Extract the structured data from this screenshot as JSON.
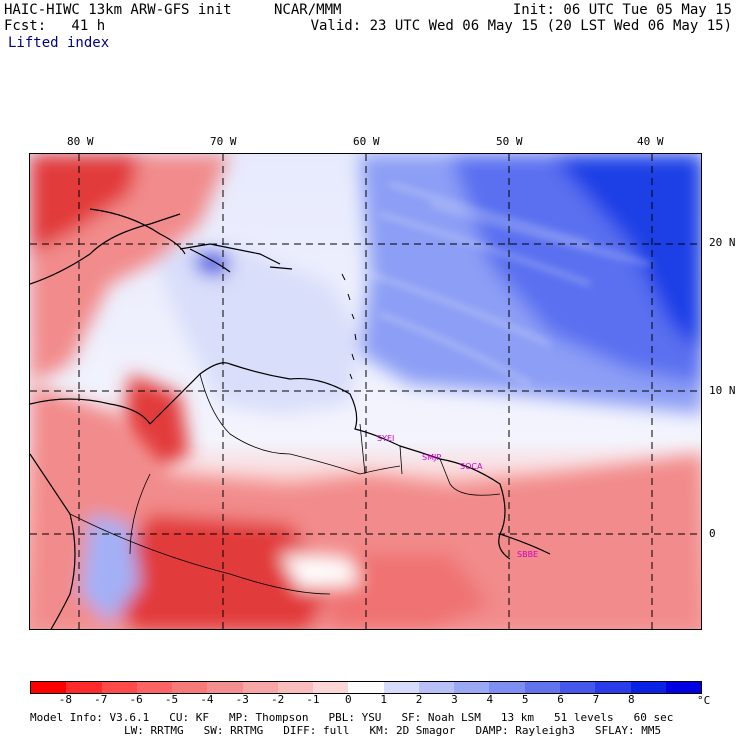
{
  "header": {
    "title": "HAIC-HIWC 13km ARW-GFS init",
    "center": "NCAR/MMM",
    "init": "Init: 06 UTC Tue 05 May 15",
    "fcst": "Fcst:   41 h",
    "valid": "Valid: 23 UTC Wed 06 May 15 (20 LST Wed 06 May 15)",
    "field": "Lifted index"
  },
  "map": {
    "longitude_labels": [
      "80 W",
      "70 W",
      "60 W",
      "50 W",
      "40 W"
    ],
    "latitude_labels": [
      "20 N",
      "10 N",
      "0"
    ],
    "station_labels": [
      "SYEI",
      "SMJP",
      "SOCA",
      "SBBE"
    ],
    "colors": {
      "strong_positive": "#1f3fe6",
      "positive": "#8c9ef5",
      "weak_positive": "#d9defa",
      "neutral": "#ffffff",
      "weak_negative": "#fbc9c9",
      "negative": "#f28b8b",
      "strong_negative": "#e23a3a",
      "station": "#cc00cc",
      "gridline": "#000000"
    }
  },
  "colorbar": {
    "ticks": [
      "-8",
      "-7",
      "-6",
      "-5",
      "-4",
      "-3",
      "-2",
      "-1",
      "0",
      "1",
      "2",
      "3",
      "4",
      "5",
      "6",
      "7",
      "8"
    ],
    "unit": "°C",
    "colors": [
      "#ff0000",
      "#ff2a2a",
      "#ff4a4a",
      "#fb6464",
      "#f77a7a",
      "#f48f8f",
      "#f6a6a6",
      "#f9bdbd",
      "#fcd6d6",
      "#ffffff",
      "#d7dcfb",
      "#b8c1f7",
      "#9ba8f4",
      "#7f8ef1",
      "#6174ee",
      "#4558eb",
      "#283de8",
      "#0a22e4",
      "#0000e0"
    ]
  },
  "model_info": {
    "line1": [
      "Model Info: V3.6.1",
      "CU: KF",
      "MP: Thompson",
      "PBL: YSU",
      "SF: Noah LSM",
      "13 km",
      "51 levels",
      "60 sec"
    ],
    "line2": [
      "LW: RRTMG",
      "SW: RRTMG",
      "DIFF: full",
      "KM: 2D Smagor",
      "DAMP: Rayleigh3",
      "SFLAY: MM5"
    ]
  }
}
